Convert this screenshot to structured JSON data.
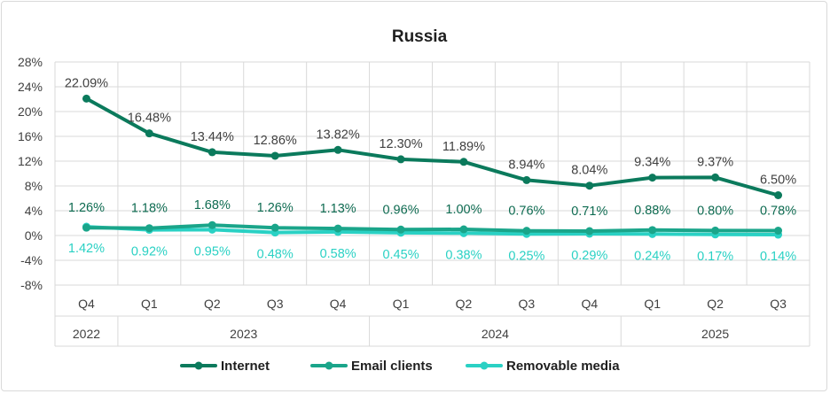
{
  "chart_data": {
    "type": "line",
    "title": "Russia",
    "categories": [
      "Q4",
      "Q1",
      "Q2",
      "Q3",
      "Q4",
      "Q1",
      "Q2",
      "Q3",
      "Q4",
      "Q1",
      "Q2",
      "Q3"
    ],
    "years": [
      {
        "label": "2022",
        "span": 1
      },
      {
        "label": "2023",
        "span": 4
      },
      {
        "label": "2024",
        "span": 4
      },
      {
        "label": "2025",
        "span": 3
      }
    ],
    "ylim": [
      -8,
      28
    ],
    "yticks": [
      -8,
      -4,
      0,
      4,
      8,
      12,
      16,
      20,
      24,
      28
    ],
    "ytick_labels": [
      "-8%",
      "-4%",
      "0%",
      "4%",
      "8%",
      "12%",
      "16%",
      "20%",
      "24%",
      "28%"
    ],
    "grid": true,
    "legend_position": "bottom",
    "series": [
      {
        "name": "Internet",
        "color": "#0b7a5c",
        "values": [
          22.09,
          16.48,
          13.44,
          12.86,
          13.82,
          12.3,
          11.89,
          8.94,
          8.04,
          9.34,
          9.37,
          6.5
        ],
        "labels": [
          "22.09%",
          "16.48%",
          "13.44%",
          "12.86%",
          "13.82%",
          "12.30%",
          "11.89%",
          "8.94%",
          "8.04%",
          "9.34%",
          "9.37%",
          "6.50%"
        ]
      },
      {
        "name": "Email clients",
        "color": "#1aa58a",
        "values": [
          1.26,
          1.18,
          1.68,
          1.26,
          1.13,
          0.96,
          1.0,
          0.76,
          0.71,
          0.88,
          0.8,
          0.78
        ],
        "labels": [
          "1.26%",
          "1.18%",
          "1.68%",
          "1.26%",
          "1.13%",
          "0.96%",
          "1.00%",
          "0.76%",
          "0.71%",
          "0.88%",
          "0.80%",
          "0.78%"
        ]
      },
      {
        "name": "Removable media",
        "color": "#2ad1c4",
        "values": [
          1.42,
          0.92,
          0.95,
          0.48,
          0.58,
          0.45,
          0.38,
          0.25,
          0.29,
          0.24,
          0.17,
          0.14
        ],
        "labels": [
          "1.42%",
          "0.92%",
          "0.95%",
          "0.48%",
          "0.58%",
          "0.45%",
          "0.38%",
          "0.25%",
          "0.29%",
          "0.24%",
          "0.17%",
          "0.14%"
        ]
      }
    ]
  }
}
